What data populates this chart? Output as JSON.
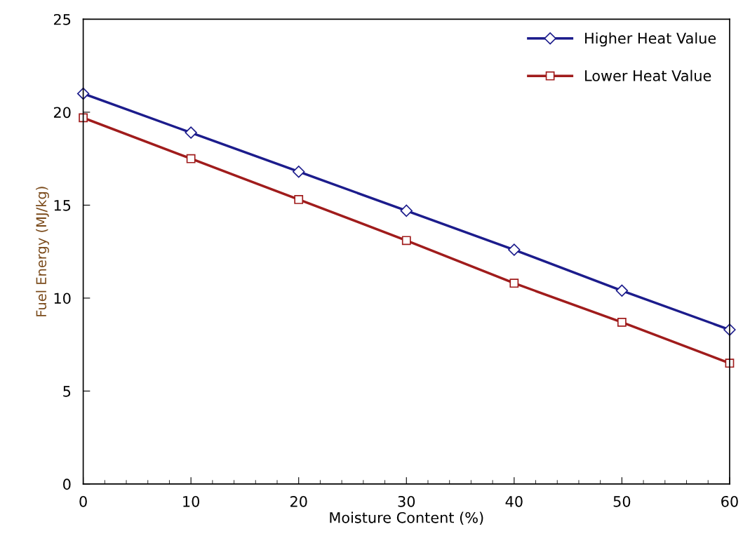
{
  "chart_data": {
    "type": "line",
    "xlabel": "Moisture Content (%)",
    "ylabel": "Fuel Energy (MJ/kg)",
    "x": [
      0,
      10,
      20,
      30,
      40,
      50,
      60
    ],
    "series": [
      {
        "name": "Higher Heat Value",
        "color": "#1c1c8c",
        "marker": "diamond",
        "values": [
          21.0,
          18.9,
          16.8,
          14.7,
          12.6,
          10.4,
          8.3
        ]
      },
      {
        "name": "Lower Heat Value",
        "color": "#a01c1c",
        "marker": "square",
        "values": [
          19.7,
          17.5,
          15.3,
          13.1,
          10.8,
          8.7,
          6.5
        ]
      }
    ],
    "xlim": [
      0,
      60
    ],
    "xticks": [
      0,
      10,
      20,
      30,
      40,
      50,
      60
    ],
    "ylim": [
      0,
      25
    ],
    "yticks": [
      0,
      5,
      10,
      15,
      20,
      25
    ],
    "grid": false,
    "legend": "top right",
    "line_style": "solid"
  }
}
